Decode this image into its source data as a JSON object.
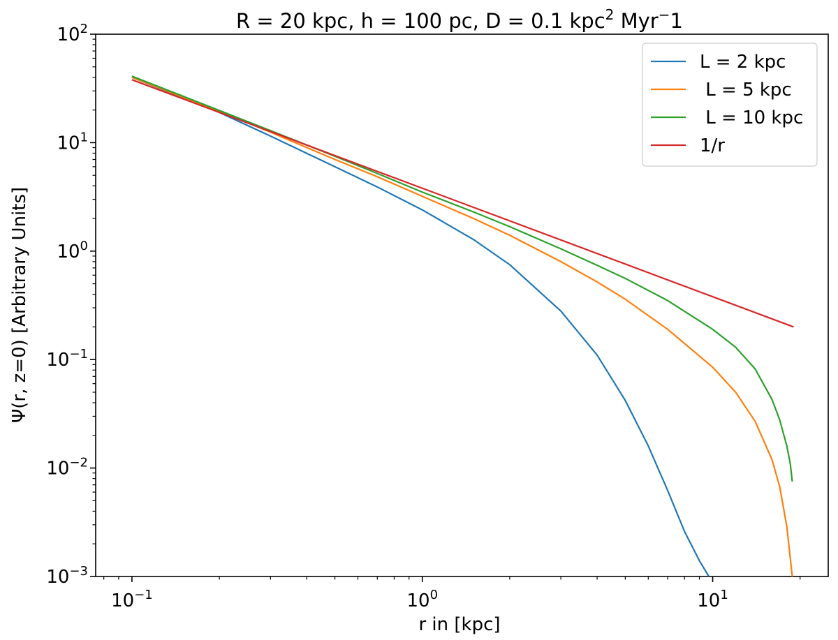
{
  "chart_data": {
    "type": "line",
    "title": {
      "base": "R = 20 kpc, h = 100 pc, D = 0.1 kpc",
      "sup": "2",
      "tail": " Myr",
      "tail_sup": "−",
      "tail_end": "1"
    },
    "xlabel": "r in [kpc]",
    "ylabel": "Ψ(r, z=0) [Arbitrary Units]",
    "x_scale": "log",
    "y_scale": "log",
    "xlim": [
      0.075,
      25
    ],
    "ylim": [
      0.001,
      100
    ],
    "x_ticks": [
      {
        "value": 0.1,
        "base": "10",
        "exp": "−1"
      },
      {
        "value": 1,
        "base": "10",
        "exp": "0"
      },
      {
        "value": 10,
        "base": "10",
        "exp": "1"
      }
    ],
    "y_ticks": [
      {
        "value": 0.001,
        "base": "10",
        "exp": "−3"
      },
      {
        "value": 0.01,
        "base": "10",
        "exp": "−2"
      },
      {
        "value": 0.1,
        "base": "10",
        "exp": "−1"
      },
      {
        "value": 1,
        "base": "10",
        "exp": "0"
      },
      {
        "value": 10,
        "base": "10",
        "exp": "1"
      },
      {
        "value": 100,
        "base": "10",
        "exp": "2"
      }
    ],
    "grid": false,
    "legend_position": "top-right",
    "series": [
      {
        "name": "L = 2 kpc",
        "color": "#1f77b4",
        "x": [
          0.1,
          0.2,
          0.3,
          0.5,
          0.7,
          1.0,
          1.5,
          2.0,
          3.0,
          4.0,
          5.0,
          6.0,
          7.0,
          8.0,
          9.0,
          9.7
        ],
        "y": [
          40,
          19,
          11.5,
          6.0,
          3.9,
          2.4,
          1.28,
          0.75,
          0.28,
          0.11,
          0.042,
          0.016,
          0.0062,
          0.0026,
          0.0014,
          0.001
        ]
      },
      {
        "name": " L = 5 kpc",
        "color": "#ff7f0e",
        "x": [
          0.1,
          0.2,
          0.3,
          0.5,
          0.7,
          1.0,
          1.5,
          2.0,
          3.0,
          4.0,
          5.0,
          7.0,
          10.0,
          12.0,
          14.0,
          16.0,
          17.0,
          18.0,
          18.8
        ],
        "y": [
          40,
          19.5,
          12.5,
          7.0,
          4.85,
          3.2,
          2.0,
          1.4,
          0.8,
          0.52,
          0.36,
          0.19,
          0.085,
          0.05,
          0.027,
          0.012,
          0.0068,
          0.0029,
          0.001
        ]
      },
      {
        "name": " L = 10 kpc",
        "color": "#2ca02c",
        "x": [
          0.1,
          0.2,
          0.3,
          0.5,
          0.7,
          1.0,
          1.5,
          2.0,
          3.0,
          4.0,
          5.0,
          7.0,
          10.0,
          12.0,
          14.0,
          16.0,
          17.0,
          18.0,
          18.5,
          18.8
        ],
        "y": [
          41,
          19.8,
          12.9,
          7.5,
          5.2,
          3.5,
          2.3,
          1.68,
          1.05,
          0.74,
          0.56,
          0.35,
          0.19,
          0.13,
          0.082,
          0.043,
          0.028,
          0.016,
          0.011,
          0.0075
        ]
      },
      {
        "name": "1/r",
        "color": "#d62728",
        "x": [
          0.1,
          19.0
        ],
        "y": [
          38.0,
          0.2
        ]
      }
    ]
  }
}
